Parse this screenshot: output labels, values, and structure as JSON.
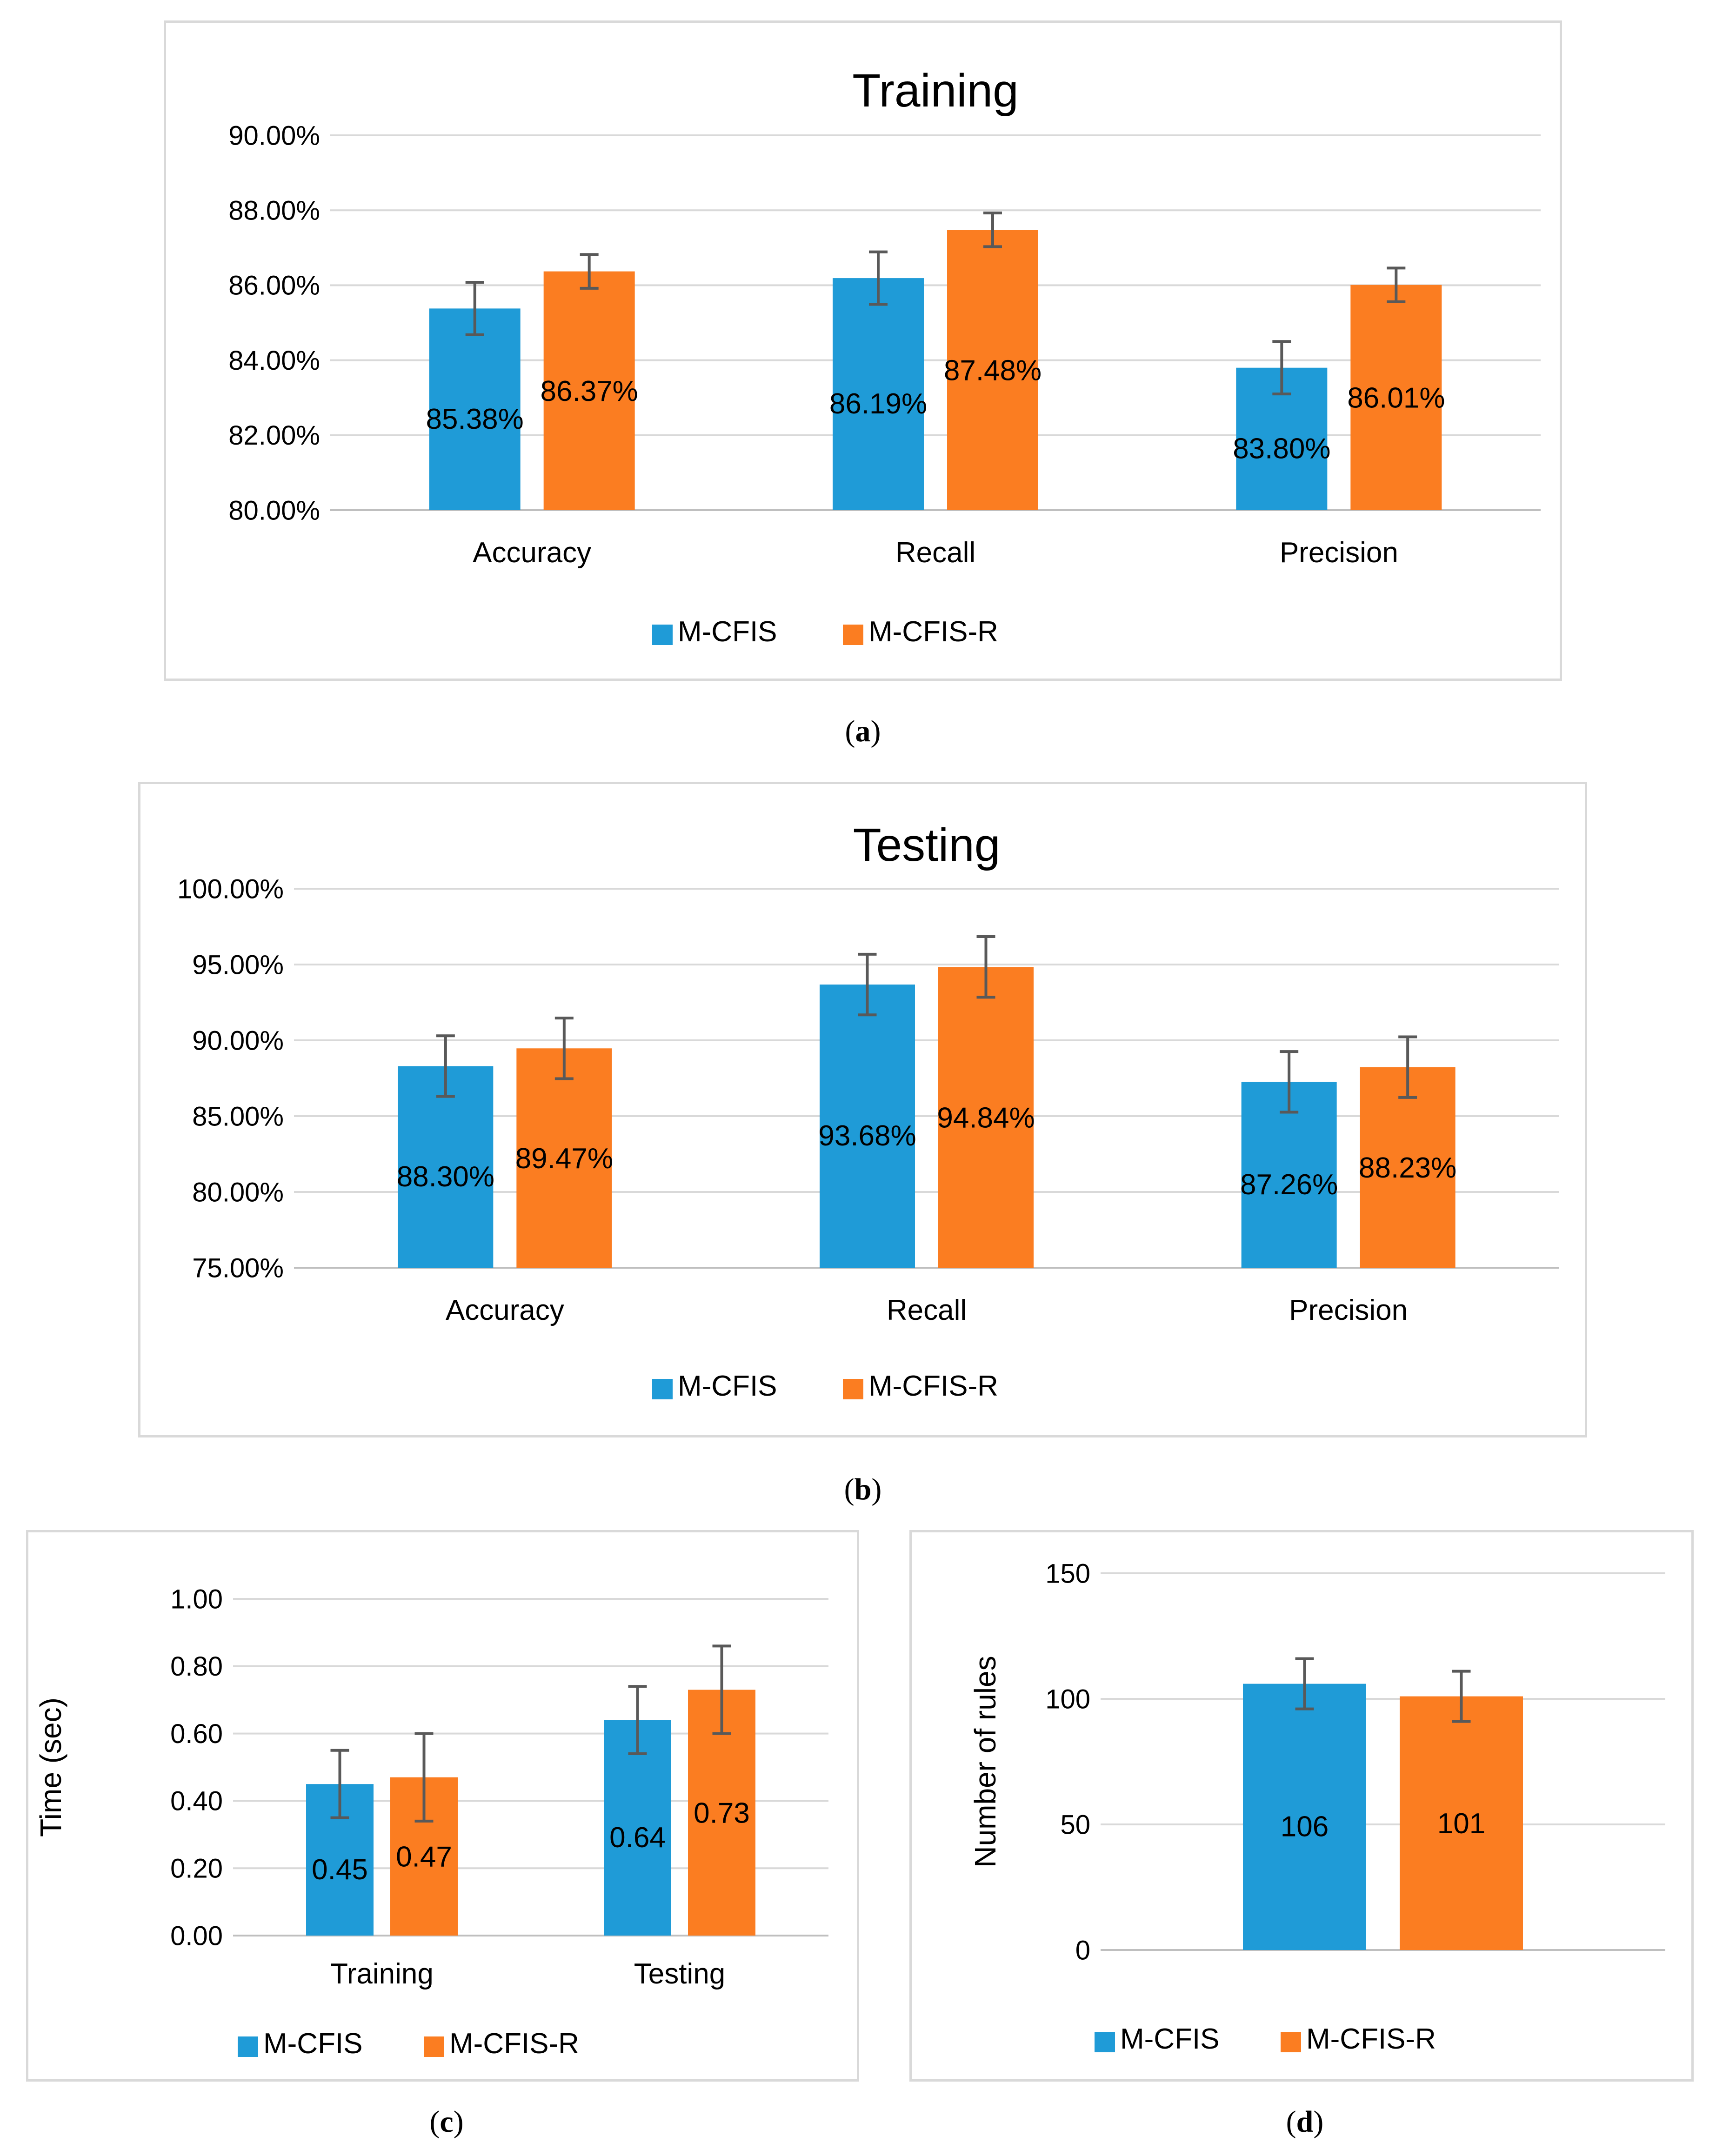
{
  "colors": {
    "m_cfis": "#1f9bd7",
    "m_cfis_r": "#fb7d21",
    "grid": "#d9d9d9",
    "error_bar": "#595959"
  },
  "captions": [
    "a",
    "b",
    "c",
    "d"
  ],
  "chart_data": [
    {
      "type": "bar",
      "title": "Training",
      "categories": [
        "Accuracy",
        "Recall",
        "Precision"
      ],
      "series": [
        {
          "name": "M-CFIS",
          "values": [
            85.38,
            86.19,
            83.8
          ],
          "labels": [
            "85.38%",
            "86.19%",
            "83.80%"
          ],
          "errors": [
            0.7,
            0.7,
            0.7
          ]
        },
        {
          "name": "M-CFIS-R",
          "values": [
            86.37,
            87.48,
            86.01
          ],
          "labels": [
            "86.37%",
            "87.48%",
            "86.01%"
          ],
          "errors": [
            0.45,
            0.45,
            0.45
          ]
        }
      ],
      "ylim": [
        80,
        90
      ],
      "yticks": [
        "80.00%",
        "82.00%",
        "84.00%",
        "86.00%",
        "88.00%",
        "90.00%"
      ],
      "xlabel": "",
      "ylabel": "",
      "grid": true,
      "legend": "bottom"
    },
    {
      "type": "bar",
      "title": "Testing",
      "categories": [
        "Accuracy",
        "Recall",
        "Precision"
      ],
      "series": [
        {
          "name": "M-CFIS",
          "values": [
            88.3,
            93.68,
            87.26
          ],
          "labels": [
            "88.30%",
            "93.68%",
            "87.26%"
          ],
          "errors": [
            2.0,
            2.0,
            2.0
          ]
        },
        {
          "name": "M-CFIS-R",
          "values": [
            89.47,
            94.84,
            88.23
          ],
          "labels": [
            "89.47%",
            "94.84%",
            "88.23%"
          ],
          "errors": [
            2.0,
            2.0,
            2.0
          ]
        }
      ],
      "ylim": [
        75,
        100
      ],
      "yticks": [
        "75.00%",
        "80.00%",
        "85.00%",
        "90.00%",
        "95.00%",
        "100.00%"
      ],
      "xlabel": "",
      "ylabel": "",
      "grid": true,
      "legend": "bottom"
    },
    {
      "type": "bar",
      "title": "",
      "categories": [
        "Training",
        "Testing"
      ],
      "series": [
        {
          "name": "M-CFIS",
          "values": [
            0.45,
            0.64
          ],
          "labels": [
            "0.45",
            "0.64"
          ],
          "errors": [
            0.1,
            0.1
          ]
        },
        {
          "name": "M-CFIS-R",
          "values": [
            0.47,
            0.73
          ],
          "labels": [
            "0.47",
            "0.73"
          ],
          "errors": [
            0.13,
            0.13
          ]
        }
      ],
      "ylim": [
        0,
        1
      ],
      "yticks": [
        "0.00",
        "0.20",
        "0.40",
        "0.60",
        "0.80",
        "1.00"
      ],
      "xlabel": "",
      "ylabel": "Time (sec)",
      "grid": true,
      "legend": "bottom"
    },
    {
      "type": "bar",
      "title": "",
      "categories": [
        ""
      ],
      "series": [
        {
          "name": "M-CFIS",
          "values": [
            106
          ],
          "labels": [
            "106"
          ],
          "errors": [
            10
          ]
        },
        {
          "name": "M-CFIS-R",
          "values": [
            101
          ],
          "labels": [
            "101"
          ],
          "errors": [
            10
          ]
        }
      ],
      "ylim": [
        0,
        150
      ],
      "yticks": [
        "0",
        "50",
        "100",
        "150"
      ],
      "xlabel": "",
      "ylabel": "Number of rules",
      "grid": true,
      "legend": "bottom"
    }
  ]
}
